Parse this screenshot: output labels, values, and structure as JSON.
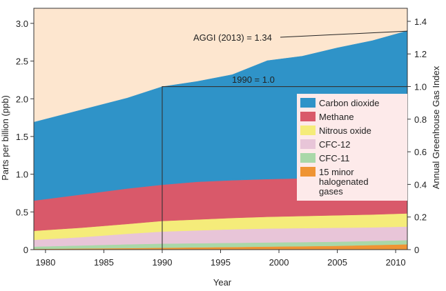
{
  "chart_data": {
    "type": "area",
    "stacked": true,
    "title": "",
    "xlabel": "Year",
    "ylabel": "Parts per billion (ppb)",
    "y2label": "Annual Greenhouse Gas Index",
    "xlim": [
      1979,
      2011
    ],
    "ylim": [
      0,
      3.2
    ],
    "y2lim": [
      0,
      1.48
    ],
    "xticks": [
      "1980",
      "1985",
      "1990",
      "1995",
      "2000",
      "2005",
      "2010"
    ],
    "yticks": [
      "0",
      "0.5",
      "1.0",
      "1.5",
      "2.0",
      "2.5",
      "3.0"
    ],
    "y2ticks": [
      "0",
      "0.2",
      "0.4",
      "0.6",
      "0.8",
      "1.0",
      "1.2",
      "1.4"
    ],
    "x": [
      1979,
      1983,
      1987,
      1990,
      1993,
      1996,
      1999,
      2002,
      2005,
      2008,
      2011
    ],
    "series": [
      {
        "name": "15 minor halogenated gases",
        "color": "#ef9434",
        "values": [
          0.01,
          0.015,
          0.02,
          0.025,
          0.03,
          0.035,
          0.04,
          0.045,
          0.05,
          0.06,
          0.07
        ]
      },
      {
        "name": "CFC-11",
        "color": "#a9d8a8",
        "values": [
          0.03,
          0.04,
          0.05,
          0.055,
          0.055,
          0.055,
          0.055,
          0.055,
          0.055,
          0.055,
          0.055
        ]
      },
      {
        "name": "CFC-12",
        "color": "#e8c5d8",
        "values": [
          0.09,
          0.11,
          0.14,
          0.16,
          0.17,
          0.18,
          0.185,
          0.185,
          0.185,
          0.18,
          0.18
        ]
      },
      {
        "name": "Nitrous oxide",
        "color": "#f5ec7a",
        "values": [
          0.12,
          0.125,
          0.13,
          0.14,
          0.145,
          0.15,
          0.155,
          0.16,
          0.165,
          0.17,
          0.175
        ]
      },
      {
        "name": "Methane",
        "color": "#d9596a",
        "values": [
          0.4,
          0.44,
          0.47,
          0.48,
          0.5,
          0.5,
          0.5,
          0.5,
          0.5,
          0.505,
          0.51
        ]
      },
      {
        "name": "Carbon dioxide",
        "color": "#2f93c8",
        "values": [
          1.04,
          1.12,
          1.2,
          1.3,
          1.33,
          1.4,
          1.57,
          1.62,
          1.72,
          1.8,
          1.91
        ]
      }
    ],
    "legend": [
      {
        "label": "Carbon dioxide",
        "color": "#2f93c8"
      },
      {
        "label": "Methane",
        "color": "#d9596a"
      },
      {
        "label": "Nitrous oxide",
        "color": "#f5ec7a"
      },
      {
        "label": "CFC-12",
        "color": "#e8c5d8"
      },
      {
        "label": "CFC-11",
        "color": "#a9d8a8"
      },
      {
        "label": "15 minor halogenated gases",
        "color": "#ef9434",
        "lines": [
          "15 minor",
          "halogenated",
          "gases"
        ]
      }
    ],
    "annotations": {
      "aggi": {
        "text": "AGGI (2013) = 1.34",
        "year": 2011,
        "index": 1.34
      },
      "baseline": {
        "text": "1990 = 1.0",
        "year": 1990,
        "index": 1.0
      }
    },
    "colors": {
      "background_fill": "#fde6cf",
      "legend_box": "#fdeaea"
    }
  }
}
